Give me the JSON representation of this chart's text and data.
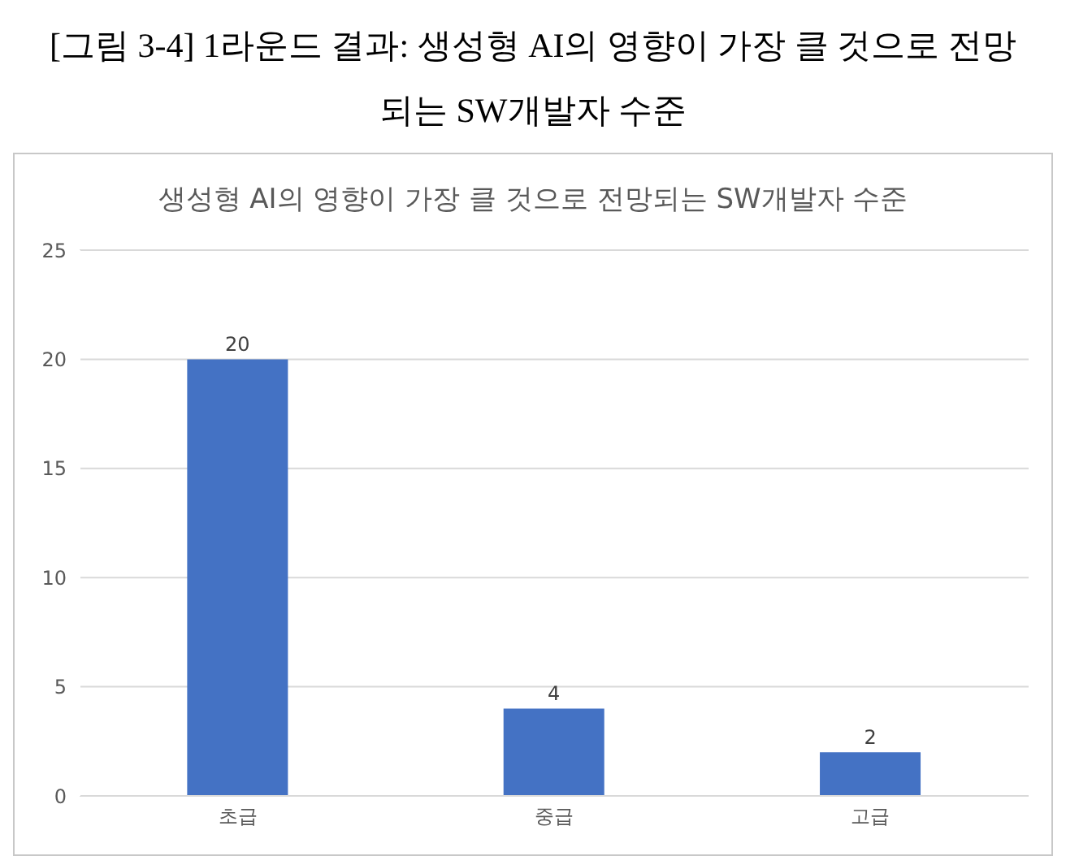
{
  "chart_data": {
    "type": "bar",
    "title": "[그림 3-4] 1라운드 결과: 생성형 AI의 영향이 가장 클 것으로 전망되는 SW개발자 수준",
    "subtitle": "생성형 AI의 영향이 가장 클 것으로 전망되는 SW개발자 수준",
    "categories": [
      "초급",
      "중급",
      "고급"
    ],
    "values": [
      20,
      4,
      2
    ],
    "color": "#4472c4",
    "ylim": [
      0,
      25
    ],
    "yticks": [
      0,
      5,
      10,
      15,
      20,
      25
    ],
    "grid": "y",
    "data_labels": true,
    "legend": false
  }
}
